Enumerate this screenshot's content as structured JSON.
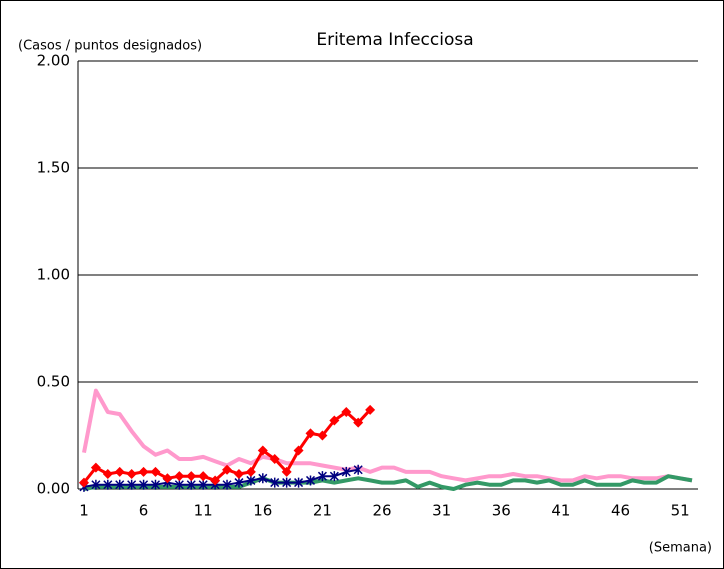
{
  "chart_data": {
    "type": "line",
    "title": "Eritema Infecciosa",
    "y_label": "(Casos / puntos designados)",
    "x_label": "(Semana)",
    "categories": [
      1,
      null,
      null,
      null,
      null,
      6,
      null,
      null,
      null,
      null,
      11,
      null,
      null,
      null,
      null,
      16,
      null,
      null,
      null,
      null,
      21,
      null,
      null,
      null,
      null,
      26,
      null,
      null,
      null,
      null,
      31,
      null,
      null,
      null,
      null,
      36,
      null,
      null,
      null,
      null,
      41,
      null,
      null,
      null,
      null,
      46,
      null,
      null,
      null,
      null,
      51,
      null
    ],
    "ylim": [
      0,
      2
    ],
    "yticks": [
      {
        "value": 0,
        "label": "0.00"
      },
      {
        "value": 0.5,
        "label": "0.50"
      },
      {
        "value": 1,
        "label": "1.00"
      },
      {
        "value": 1.5,
        "label": "1.50"
      },
      {
        "value": 2,
        "label": "2.00"
      }
    ],
    "grid": true,
    "series": [
      {
        "color": "#ff99cc",
        "marker": "none",
        "width": 4,
        "values": [
          0.17,
          0.46,
          0.36,
          0.35,
          0.27,
          0.2,
          0.16,
          0.18,
          0.14,
          0.14,
          0.15,
          0.13,
          0.11,
          0.14,
          0.12,
          0.15,
          0.14,
          0.12,
          0.12,
          0.12,
          0.11,
          0.1,
          0.09,
          0.1,
          0.08,
          0.1,
          0.1,
          0.08,
          0.08,
          0.08,
          0.06,
          0.05,
          0.04,
          0.05,
          0.06,
          0.06,
          0.07,
          0.06,
          0.06,
          0.05,
          0.04,
          0.04,
          0.06,
          0.05,
          0.06,
          0.06,
          0.05,
          0.05,
          0.05,
          0.06,
          0.05,
          0.04
        ]
      },
      {
        "color": "#339966",
        "marker": "none",
        "width": 4,
        "values": [
          0.0,
          0.01,
          0.01,
          0.01,
          0.01,
          0.01,
          0.01,
          0.01,
          0.01,
          0.01,
          0.01,
          0.01,
          0.01,
          0.01,
          0.03,
          0.05,
          0.03,
          0.03,
          0.03,
          0.03,
          0.04,
          0.03,
          0.04,
          0.05,
          0.04,
          0.03,
          0.03,
          0.04,
          0.01,
          0.03,
          0.01,
          0.0,
          0.02,
          0.03,
          0.02,
          0.02,
          0.04,
          0.04,
          0.03,
          0.04,
          0.02,
          0.02,
          0.04,
          0.02,
          0.02,
          0.02,
          0.04,
          0.03,
          0.03,
          0.06,
          0.05,
          0.04
        ]
      },
      {
        "color": "#000080",
        "marker": "asterisk",
        "width": 2,
        "values": [
          0.01,
          0.02,
          0.02,
          0.02,
          0.02,
          0.02,
          0.02,
          0.03,
          0.02,
          0.02,
          0.02,
          0.02,
          0.02,
          0.03,
          0.04,
          0.05,
          0.03,
          0.03,
          0.03,
          0.04,
          0.06,
          0.06,
          0.08,
          0.09,
          null,
          null,
          null,
          null,
          null,
          null,
          null,
          null,
          null,
          null,
          null,
          null,
          null,
          null,
          null,
          null,
          null,
          null,
          null,
          null,
          null,
          null,
          null,
          null,
          null,
          null,
          null,
          null
        ]
      },
      {
        "color": "#ff0000",
        "marker": "diamond",
        "width": 3,
        "values": [
          0.03,
          0.1,
          0.07,
          0.08,
          0.07,
          0.08,
          0.08,
          0.05,
          0.06,
          0.06,
          0.06,
          0.04,
          0.09,
          0.07,
          0.08,
          0.18,
          0.14,
          0.08,
          0.18,
          0.26,
          0.25,
          0.32,
          0.36,
          0.31,
          0.37,
          null,
          null,
          null,
          null,
          null,
          null,
          null,
          null,
          null,
          null,
          null,
          null,
          null,
          null,
          null,
          null,
          null,
          null,
          null,
          null,
          null,
          null,
          null,
          null,
          null,
          null,
          null
        ]
      }
    ]
  }
}
